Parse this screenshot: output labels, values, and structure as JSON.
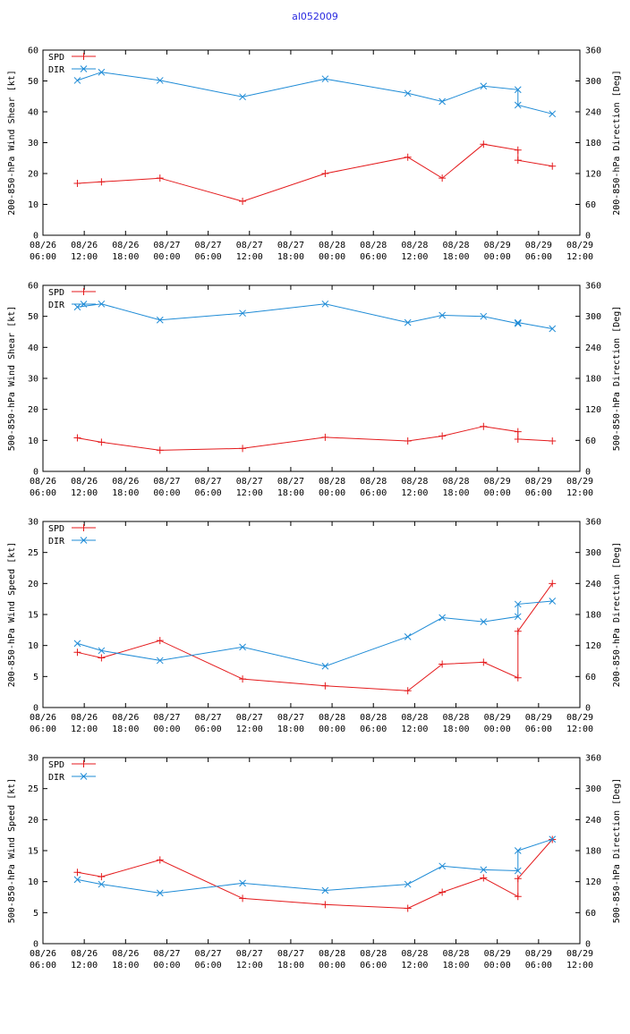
{
  "title": "al052009",
  "colors": {
    "spd": "#e41a1c",
    "dir": "#1e8bd6",
    "axis": "#000000",
    "title": "#2a2ae0"
  },
  "x_axis": {
    "ticks": [
      {
        "t": 6,
        "date": "08/26",
        "time": "06:00"
      },
      {
        "t": 12,
        "date": "08/26",
        "time": "12:00"
      },
      {
        "t": 18,
        "date": "08/26",
        "time": "18:00"
      },
      {
        "t": 24,
        "date": "08/27",
        "time": "00:00"
      },
      {
        "t": 30,
        "date": "08/27",
        "time": "06:00"
      },
      {
        "t": 36,
        "date": "08/27",
        "time": "12:00"
      },
      {
        "t": 42,
        "date": "08/27",
        "time": "18:00"
      },
      {
        "t": 48,
        "date": "08/28",
        "time": "00:00"
      },
      {
        "t": 54,
        "date": "08/28",
        "time": "06:00"
      },
      {
        "t": 60,
        "date": "08/28",
        "time": "12:00"
      },
      {
        "t": 66,
        "date": "08/28",
        "time": "18:00"
      },
      {
        "t": 72,
        "date": "08/29",
        "time": "00:00"
      },
      {
        "t": 78,
        "date": "08/29",
        "time": "06:00"
      },
      {
        "t": 84,
        "date": "08/29",
        "time": "12:00"
      }
    ],
    "range": [
      6,
      84
    ]
  },
  "legend": {
    "spd": "SPD",
    "dir": "DIR"
  },
  "chart_data": [
    {
      "type": "line",
      "ylabel": "200-850-hPa Wind Shear [kt]",
      "y2label": "200-850-hPa Direction [Deg]",
      "ylim": [
        0,
        60
      ],
      "yticks": [
        0,
        10,
        20,
        30,
        40,
        50,
        60
      ],
      "y2lim": [
        0,
        360
      ],
      "y2ticks": [
        0,
        60,
        120,
        180,
        240,
        300,
        360
      ],
      "series": [
        {
          "name": "SPD",
          "axis": "left",
          "x": [
            11,
            14.5,
            23,
            35,
            47,
            59,
            64,
            70,
            75,
            75,
            80
          ],
          "values": [
            16.8,
            17.3,
            18.5,
            11,
            20,
            25.3,
            18.5,
            29.5,
            27.6,
            24.3,
            22.4
          ]
        },
        {
          "name": "DIR",
          "axis": "right",
          "x": [
            11,
            14.5,
            23,
            35,
            47,
            59,
            64,
            70,
            75,
            75,
            80
          ],
          "values": [
            301,
            317,
            301,
            269,
            304,
            276,
            260,
            290,
            283,
            253,
            236
          ]
        }
      ]
    },
    {
      "type": "line",
      "ylabel": "500-850-hPa Wind Shear [kt]",
      "y2label": "500-850-hPa Direction [Deg]",
      "ylim": [
        0,
        60
      ],
      "yticks": [
        0,
        10,
        20,
        30,
        40,
        50,
        60
      ],
      "y2lim": [
        0,
        360
      ],
      "y2ticks": [
        0,
        60,
        120,
        180,
        240,
        300,
        360
      ],
      "series": [
        {
          "name": "SPD",
          "axis": "left",
          "x": [
            11,
            14.5,
            23,
            35,
            47,
            59,
            64,
            70,
            75,
            75,
            80
          ],
          "values": [
            10.8,
            9.4,
            6.8,
            7.4,
            11,
            9.8,
            11.4,
            14.5,
            12.8,
            10.4,
            9.8
          ]
        },
        {
          "name": "DIR",
          "axis": "right",
          "x": [
            11,
            14.5,
            23,
            35,
            47,
            59,
            64,
            70,
            75,
            75,
            80
          ],
          "values": [
            318,
            324,
            293,
            306,
            324,
            288,
            302,
            300,
            286,
            288,
            276
          ]
        }
      ]
    },
    {
      "type": "line",
      "ylabel": "200-850-hPa Wind Speed [kt]",
      "y2label": "200-850-hPa Direction [Deg]",
      "ylim": [
        0,
        30
      ],
      "yticks": [
        0,
        5,
        10,
        15,
        20,
        25,
        30
      ],
      "y2lim": [
        0,
        360
      ],
      "y2ticks": [
        0,
        60,
        120,
        180,
        240,
        300,
        360
      ],
      "series": [
        {
          "name": "SPD",
          "axis": "left",
          "x": [
            11,
            14.5,
            23,
            35,
            47,
            59,
            64,
            70,
            75,
            75,
            80
          ],
          "values": [
            8.9,
            8,
            10.8,
            4.6,
            3.5,
            2.7,
            7,
            7.3,
            4.8,
            12.3,
            20
          ]
        },
        {
          "name": "DIR",
          "axis": "right",
          "x": [
            11,
            14.5,
            23,
            35,
            47,
            59,
            64,
            70,
            75,
            75,
            80
          ],
          "values": [
            124,
            110,
            91,
            117,
            80,
            137,
            174,
            166,
            176,
            200,
            206
          ]
        }
      ]
    },
    {
      "type": "line",
      "ylabel": "500-850-hPa Wind Speed [kt]",
      "y2label": "500-850-hPa Direction [Deg]",
      "ylim": [
        0,
        30
      ],
      "yticks": [
        0,
        5,
        10,
        15,
        20,
        25,
        30
      ],
      "y2lim": [
        0,
        360
      ],
      "y2ticks": [
        0,
        60,
        120,
        180,
        240,
        300,
        360
      ],
      "series": [
        {
          "name": "SPD",
          "axis": "left",
          "x": [
            11,
            14.5,
            23,
            35,
            47,
            59,
            64,
            70,
            75,
            75,
            80
          ],
          "values": [
            11.5,
            10.8,
            13.5,
            7.3,
            6.3,
            5.7,
            8.3,
            10.6,
            7.6,
            10.5,
            16.8
          ]
        },
        {
          "name": "DIR",
          "axis": "right",
          "x": [
            11,
            14.5,
            23,
            35,
            47,
            59,
            64,
            70,
            75,
            75,
            80
          ],
          "values": [
            124,
            115,
            98,
            117,
            103,
            115,
            150,
            143,
            141,
            180,
            202
          ]
        }
      ]
    }
  ]
}
